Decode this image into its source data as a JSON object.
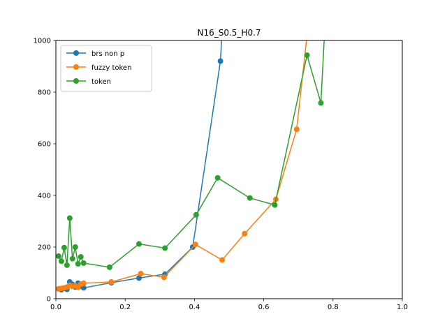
{
  "chart_data": {
    "type": "line",
    "title": "N16_S0.5_H0.7",
    "xlabel": "",
    "ylabel": "",
    "xlim": [
      0,
      1.0
    ],
    "ylim": [
      0,
      1000
    ],
    "xticks": [
      "0.0",
      "0.2",
      "0.4",
      "0.6",
      "0.8",
      "1.0"
    ],
    "yticks": [
      "0",
      "200",
      "400",
      "600",
      "800",
      "1000"
    ],
    "grid": false,
    "legend_position": "top-left",
    "series": [
      {
        "name": "brs non p",
        "color": "#1f77b4",
        "points": [
          [
            0.008,
            38
          ],
          [
            0.016,
            35
          ],
          [
            0.024,
            40
          ],
          [
            0.032,
            36
          ],
          [
            0.04,
            65
          ],
          [
            0.048,
            55
          ],
          [
            0.056,
            45
          ],
          [
            0.064,
            60
          ],
          [
            0.072,
            48
          ],
          [
            0.08,
            42
          ],
          [
            0.16,
            62
          ],
          [
            0.24,
            80
          ],
          [
            0.315,
            95
          ],
          [
            0.395,
            200
          ],
          [
            0.475,
            920
          ],
          [
            0.515,
            1900
          ]
        ]
      },
      {
        "name": "fuzzy token",
        "color": "#ff7f0e",
        "points": [
          [
            0.008,
            38
          ],
          [
            0.016,
            40
          ],
          [
            0.024,
            42
          ],
          [
            0.032,
            45
          ],
          [
            0.04,
            52
          ],
          [
            0.048,
            48
          ],
          [
            0.056,
            50
          ],
          [
            0.064,
            44
          ],
          [
            0.072,
            56
          ],
          [
            0.08,
            60
          ],
          [
            0.16,
            65
          ],
          [
            0.245,
            97
          ],
          [
            0.312,
            83
          ],
          [
            0.403,
            210
          ],
          [
            0.48,
            150
          ],
          [
            0.545,
            252
          ],
          [
            0.635,
            385
          ],
          [
            0.695,
            656
          ],
          [
            0.74,
            1200
          ]
        ]
      },
      {
        "name": "token",
        "color": "#2ca02c",
        "points": [
          [
            0.008,
            165
          ],
          [
            0.016,
            145
          ],
          [
            0.024,
            198
          ],
          [
            0.032,
            130
          ],
          [
            0.04,
            312
          ],
          [
            0.048,
            155
          ],
          [
            0.056,
            200
          ],
          [
            0.064,
            135
          ],
          [
            0.072,
            162
          ],
          [
            0.08,
            138
          ],
          [
            0.155,
            122
          ],
          [
            0.24,
            212
          ],
          [
            0.315,
            196
          ],
          [
            0.405,
            325
          ],
          [
            0.467,
            468
          ],
          [
            0.56,
            390
          ],
          [
            0.632,
            363
          ],
          [
            0.725,
            943
          ],
          [
            0.765,
            758
          ],
          [
            0.79,
            1400
          ]
        ]
      }
    ]
  }
}
